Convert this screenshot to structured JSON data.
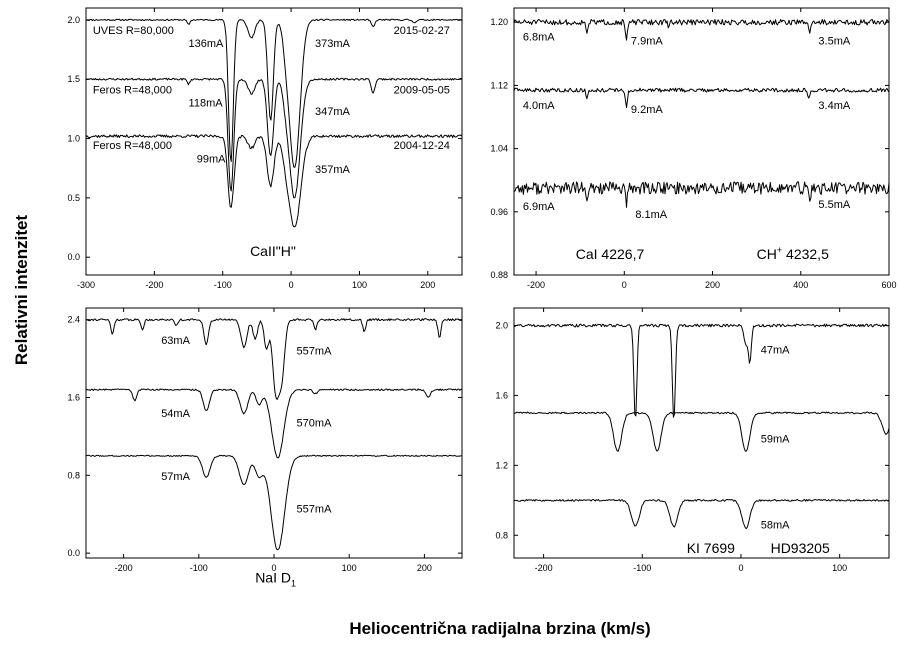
{
  "figure": {
    "xlabel": "Heliocentrična radijalna brzina (km/s)",
    "ylabel": "Relativni intenzitet"
  },
  "chart_data": [
    {
      "type": "line",
      "id": "caii",
      "title": "CaII\"H\"",
      "xlim": [
        -300,
        250
      ],
      "ylim": [
        -0.15,
        2.1
      ],
      "xticks": [
        -300,
        -200,
        -100,
        0,
        100,
        200
      ],
      "yticks": [
        0.0,
        0.5,
        1.0,
        1.5,
        2.0
      ],
      "ytick_labels": [
        "0.0",
        "0.5",
        "1.0",
        "1.5",
        "2.0"
      ],
      "series": [
        {
          "base": 2.0,
          "lines": [
            [
              -88,
              1.2,
              3.5
            ],
            [
              -30,
              0.85,
              4
            ],
            [
              5,
              1.25,
              8
            ],
            [
              -58,
              0.15,
              5
            ],
            [
              -8,
              0.12,
              4
            ],
            [
              -150,
              0.04,
              2
            ],
            [
              120,
              0.06,
              2.5
            ],
            [
              180,
              0.02,
              3
            ]
          ],
          "noise": 0.006,
          "seed": 11
        },
        {
          "base": 1.5,
          "lines": [
            [
              -88,
              0.95,
              4
            ],
            [
              -30,
              0.65,
              4.5
            ],
            [
              5,
              1.0,
              8
            ],
            [
              -58,
              0.12,
              5
            ],
            [
              -8,
              0.1,
              4
            ],
            [
              -150,
              0.04,
              2
            ],
            [
              120,
              0.12,
              2.5
            ]
          ],
          "noise": 0.008,
          "seed": 23
        },
        {
          "base": 1.02,
          "lines": [
            [
              -88,
              0.6,
              4.5
            ],
            [
              -30,
              0.42,
              5
            ],
            [
              5,
              0.77,
              9
            ],
            [
              -58,
              0.1,
              5
            ],
            [
              -8,
              0.08,
              4
            ]
          ],
          "noise": 0.012,
          "seed": 37
        }
      ],
      "annotations": [
        {
          "text": "UVES R=80,000",
          "x": -290,
          "y": 1.88
        },
        {
          "text": "2015-02-27",
          "x": 150,
          "y": 1.88
        },
        {
          "text": "136mA",
          "x": -150,
          "y": 1.77
        },
        {
          "text": "373mA",
          "x": 35,
          "y": 1.77
        },
        {
          "text": "Feros R=48,000",
          "x": -290,
          "y": 1.38
        },
        {
          "text": "2009-05-05",
          "x": 150,
          "y": 1.38
        },
        {
          "text": "118mA",
          "x": -150,
          "y": 1.27
        },
        {
          "text": "347mA",
          "x": 35,
          "y": 1.2
        },
        {
          "text": "Feros R=48,000",
          "x": -290,
          "y": 0.91
        },
        {
          "text": "2004-12-24",
          "x": 150,
          "y": 0.91
        },
        {
          "text": "99mA",
          "x": -138,
          "y": 0.8
        },
        {
          "text": "357mA",
          "x": 35,
          "y": 0.71
        },
        {
          "text": "CaII\"H\"",
          "x": -60,
          "y": 0.01,
          "big": true
        }
      ]
    },
    {
      "type": "line",
      "id": "cai",
      "title": "",
      "xlim": [
        -250,
        600
      ],
      "ylim": [
        0.88,
        1.218
      ],
      "xticks": [
        -200,
        0,
        200,
        400,
        600
      ],
      "yticks": [
        0.88,
        0.96,
        1.04,
        1.12,
        1.2
      ],
      "ytick_labels": [
        "0.88",
        "0.96",
        "1.04",
        "1.12",
        "1.20"
      ],
      "series": [
        {
          "base": 1.2,
          "lines": [
            [
              -85,
              0.012,
              2
            ],
            [
              5,
              0.022,
              2.5
            ],
            [
              -120,
              0.004,
              2
            ],
            [
              100,
              0.004,
              2
            ],
            [
              420,
              0.014,
              2
            ],
            [
              510,
              0.004,
              2
            ]
          ],
          "noise": 0.0035,
          "seed": 51
        },
        {
          "base": 1.114,
          "lines": [
            [
              -85,
              0.01,
              2
            ],
            [
              5,
              0.02,
              2.5
            ],
            [
              418,
              0.012,
              2
            ]
          ],
          "noise": 0.0025,
          "seed": 63
        },
        {
          "base": 0.99,
          "lines": [
            [
              -85,
              0.02,
              2.5
            ],
            [
              5,
              0.02,
              2.5
            ],
            [
              420,
              0.015,
              2.5
            ]
          ],
          "noise": 0.008,
          "seed": 77
        }
      ],
      "annotations": [
        {
          "text": "6.8mA",
          "x": -230,
          "y": 1.177
        },
        {
          "text": "7.9mA",
          "x": 15,
          "y": 1.172
        },
        {
          "text": "3.5mA",
          "x": 440,
          "y": 1.172
        },
        {
          "text": "4.0mA",
          "x": -230,
          "y": 1.09
        },
        {
          "text": "9.2mA",
          "x": 15,
          "y": 1.085
        },
        {
          "text": "3.4mA",
          "x": 440,
          "y": 1.09
        },
        {
          "text": "6.9mA",
          "x": -230,
          "y": 0.962
        },
        {
          "text": "8.1mA",
          "x": 25,
          "y": 0.952
        },
        {
          "text": "5.5mA",
          "x": 440,
          "y": 0.965
        },
        {
          "text": "CaI 4226,7",
          "x": -110,
          "y": 0.9,
          "big": true
        },
        {
          "text": "CH",
          "x": 300,
          "y": 0.9,
          "big": true,
          "sup": "+",
          "after": " 4232,5"
        }
      ]
    },
    {
      "type": "line",
      "id": "nai",
      "title": "",
      "xlim": [
        -250,
        250
      ],
      "ylim": [
        -0.05,
        2.52
      ],
      "xticks": [
        -200,
        -100,
        0,
        100,
        200
      ],
      "yticks": [
        0.0,
        0.8,
        1.6,
        2.4
      ],
      "ytick_labels": [
        "0.0",
        "0.8",
        "1.6",
        "2.4"
      ],
      "series": [
        {
          "base": 2.4,
          "lines": [
            [
              -90,
              0.25,
              3
            ],
            [
              -215,
              0.15,
              2
            ],
            [
              -175,
              0.1,
              2
            ],
            [
              -130,
              0.06,
              2
            ],
            [
              -40,
              0.28,
              4
            ],
            [
              -25,
              0.2,
              3
            ],
            [
              -10,
              0.3,
              3
            ],
            [
              2,
              0.7,
              4
            ],
            [
              10,
              0.6,
              4
            ],
            [
              55,
              0.1,
              2
            ],
            [
              120,
              0.12,
              2
            ],
            [
              220,
              0.18,
              2
            ]
          ],
          "noise": 0.01,
          "seed": 91
        },
        {
          "base": 1.68,
          "lines": [
            [
              -90,
              0.22,
              4
            ],
            [
              -185,
              0.12,
              2.5
            ],
            [
              -40,
              0.25,
              5
            ],
            [
              -20,
              0.15,
              4
            ],
            [
              5,
              0.7,
              8
            ],
            [
              55,
              0.04,
              3
            ],
            [
              205,
              0.08,
              3
            ]
          ],
          "noise": 0.008,
          "seed": 103
        },
        {
          "base": 1.0,
          "lines": [
            [
              -90,
              0.22,
              5
            ],
            [
              -40,
              0.3,
              6
            ],
            [
              -20,
              0.2,
              5
            ],
            [
              5,
              0.97,
              9
            ]
          ],
          "noise": 0.006,
          "seed": 117
        }
      ],
      "annotations": [
        {
          "text": "63mA",
          "x": -150,
          "y": 2.15
        },
        {
          "text": "557mA",
          "x": 30,
          "y": 2.04
        },
        {
          "text": "54mA",
          "x": -150,
          "y": 1.4
        },
        {
          "text": "570mA",
          "x": 30,
          "y": 1.3
        },
        {
          "text": "57mA",
          "x": -150,
          "y": 0.75
        },
        {
          "text": "557mA",
          "x": 30,
          "y": 0.42
        },
        {
          "text": "NaI D",
          "x": -25,
          "y": -0.3,
          "big": true,
          "sub": "1"
        }
      ]
    },
    {
      "type": "line",
      "id": "ki",
      "title": "",
      "xlim": [
        -230,
        150
      ],
      "ylim": [
        0.67,
        2.1
      ],
      "xticks": [
        -200,
        -100,
        0,
        100
      ],
      "yticks": [
        0.8,
        1.2,
        1.6,
        2.0
      ],
      "ytick_labels": [
        "0.8",
        "1.2",
        "1.6",
        "2.0"
      ],
      "series": [
        {
          "base": 2.0,
          "lines": [
            [
              -107,
              0.55,
              1.5
            ],
            [
              -68,
              0.55,
              1.5
            ],
            [
              5,
              0.1,
              2
            ],
            [
              9,
              0.2,
              1.5
            ]
          ],
          "noise": 0.008,
          "seed": 131
        },
        {
          "base": 1.5,
          "lines": [
            [
              -125,
              0.22,
              4
            ],
            [
              -85,
              0.22,
              4
            ],
            [
              5,
              0.22,
              4
            ],
            [
              147,
              0.12,
              4
            ]
          ],
          "noise": 0.005,
          "seed": 143
        },
        {
          "base": 1.0,
          "lines": [
            [
              -107,
              0.15,
              4
            ],
            [
              -68,
              0.15,
              4
            ],
            [
              5,
              0.16,
              4
            ]
          ],
          "noise": 0.005,
          "seed": 157
        }
      ],
      "annotations": [
        {
          "text": "47mA",
          "x": 20,
          "y": 1.84
        },
        {
          "text": "59mA",
          "x": 20,
          "y": 1.33
        },
        {
          "text": "58mA",
          "x": 20,
          "y": 0.84
        },
        {
          "text": "KI 7699",
          "x": -55,
          "y": 0.7,
          "big": true
        },
        {
          "text": "HD93205",
          "x": 30,
          "y": 0.7,
          "big": true
        }
      ]
    }
  ]
}
